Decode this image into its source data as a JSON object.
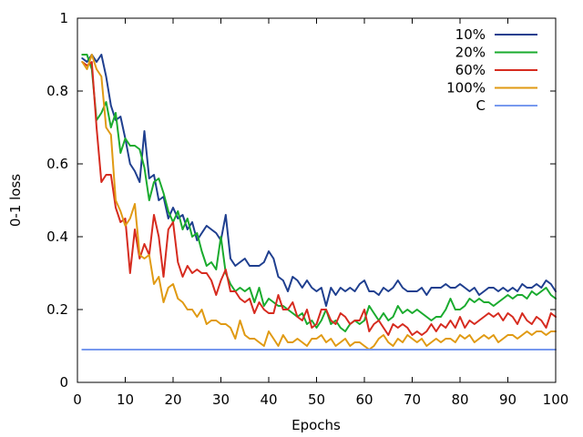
{
  "chart_data": {
    "type": "line",
    "title": "",
    "xlabel": "Epochs",
    "ylabel": "0-1 loss",
    "xlim": [
      0,
      100
    ],
    "ylim": [
      0,
      1
    ],
    "xticks": [
      0,
      10,
      20,
      30,
      40,
      50,
      60,
      70,
      80,
      90,
      100
    ],
    "yticks": [
      0,
      0.2,
      0.4,
      0.6,
      0.8,
      1
    ],
    "ytick_labels": [
      "0",
      "0.2",
      "0.4",
      "0.6",
      "0.8",
      "1"
    ],
    "grid": false,
    "legend_position": "top-right",
    "series": [
      {
        "name": "10%",
        "color": "#1f3f8f",
        "x": [
          1,
          2,
          3,
          4,
          5,
          6,
          7,
          8,
          9,
          10,
          11,
          12,
          13,
          14,
          15,
          16,
          17,
          18,
          19,
          20,
          21,
          22,
          23,
          24,
          25,
          26,
          27,
          28,
          29,
          30,
          31,
          32,
          33,
          34,
          35,
          36,
          37,
          38,
          39,
          40,
          41,
          42,
          43,
          44,
          45,
          46,
          47,
          48,
          49,
          50,
          51,
          52,
          53,
          54,
          55,
          56,
          57,
          58,
          59,
          60,
          61,
          62,
          63,
          64,
          65,
          66,
          67,
          68,
          69,
          70,
          71,
          72,
          73,
          74,
          75,
          76,
          77,
          78,
          79,
          80,
          81,
          82,
          83,
          84,
          85,
          86,
          87,
          88,
          89,
          90,
          91,
          92,
          93,
          94,
          95,
          96,
          97,
          98,
          99,
          100
        ],
        "y": [
          0.89,
          0.88,
          0.9,
          0.88,
          0.9,
          0.84,
          0.76,
          0.72,
          0.73,
          0.67,
          0.6,
          0.58,
          0.55,
          0.69,
          0.56,
          0.57,
          0.5,
          0.51,
          0.45,
          0.48,
          0.45,
          0.46,
          0.42,
          0.44,
          0.39,
          0.41,
          0.43,
          0.42,
          0.41,
          0.39,
          0.46,
          0.34,
          0.32,
          0.33,
          0.34,
          0.32,
          0.32,
          0.32,
          0.33,
          0.36,
          0.34,
          0.29,
          0.28,
          0.25,
          0.29,
          0.28,
          0.26,
          0.28,
          0.26,
          0.25,
          0.26,
          0.21,
          0.26,
          0.24,
          0.26,
          0.25,
          0.26,
          0.25,
          0.27,
          0.28,
          0.25,
          0.25,
          0.24,
          0.26,
          0.25,
          0.26,
          0.28,
          0.26,
          0.25,
          0.25,
          0.25,
          0.26,
          0.24,
          0.26,
          0.26,
          0.26,
          0.27,
          0.26,
          0.26,
          0.27,
          0.26,
          0.25,
          0.26,
          0.24,
          0.25,
          0.26,
          0.26,
          0.25,
          0.26,
          0.25,
          0.26,
          0.25,
          0.27,
          0.26,
          0.26,
          0.27,
          0.26,
          0.28,
          0.27,
          0.25
        ]
      },
      {
        "name": "20%",
        "color": "#1aab2e",
        "x": [
          1,
          2,
          3,
          4,
          5,
          6,
          7,
          8,
          9,
          10,
          11,
          12,
          13,
          14,
          15,
          16,
          17,
          18,
          19,
          20,
          21,
          22,
          23,
          24,
          25,
          26,
          27,
          28,
          29,
          30,
          31,
          32,
          33,
          34,
          35,
          36,
          37,
          38,
          39,
          40,
          41,
          42,
          43,
          44,
          45,
          46,
          47,
          48,
          49,
          50,
          51,
          52,
          53,
          54,
          55,
          56,
          57,
          58,
          59,
          60,
          61,
          62,
          63,
          64,
          65,
          66,
          67,
          68,
          69,
          70,
          71,
          72,
          73,
          74,
          75,
          76,
          77,
          78,
          79,
          80,
          81,
          82,
          83,
          84,
          85,
          86,
          87,
          88,
          89,
          90,
          91,
          92,
          93,
          94,
          95,
          96,
          97,
          98,
          99,
          100
        ],
        "y": [
          0.9,
          0.9,
          0.86,
          0.72,
          0.74,
          0.77,
          0.7,
          0.74,
          0.63,
          0.67,
          0.65,
          0.65,
          0.64,
          0.59,
          0.5,
          0.55,
          0.56,
          0.52,
          0.47,
          0.44,
          0.47,
          0.42,
          0.45,
          0.4,
          0.41,
          0.36,
          0.32,
          0.33,
          0.31,
          0.4,
          0.3,
          0.27,
          0.25,
          0.26,
          0.25,
          0.26,
          0.22,
          0.26,
          0.21,
          0.23,
          0.22,
          0.21,
          0.21,
          0.2,
          0.19,
          0.18,
          0.19,
          0.16,
          0.17,
          0.15,
          0.17,
          0.2,
          0.16,
          0.17,
          0.15,
          0.14,
          0.16,
          0.17,
          0.16,
          0.17,
          0.21,
          0.19,
          0.17,
          0.19,
          0.17,
          0.18,
          0.21,
          0.19,
          0.2,
          0.19,
          0.2,
          0.19,
          0.18,
          0.17,
          0.18,
          0.18,
          0.2,
          0.23,
          0.2,
          0.2,
          0.21,
          0.23,
          0.22,
          0.23,
          0.22,
          0.22,
          0.21,
          0.22,
          0.23,
          0.24,
          0.23,
          0.24,
          0.24,
          0.23,
          0.25,
          0.24,
          0.25,
          0.26,
          0.24,
          0.23
        ]
      },
      {
        "name": "60%",
        "color": "#d62b1f",
        "x": [
          1,
          2,
          3,
          4,
          5,
          6,
          7,
          8,
          9,
          10,
          11,
          12,
          13,
          14,
          15,
          16,
          17,
          18,
          19,
          20,
          21,
          22,
          23,
          24,
          25,
          26,
          27,
          28,
          29,
          30,
          31,
          32,
          33,
          34,
          35,
          36,
          37,
          38,
          39,
          40,
          41,
          42,
          43,
          44,
          45,
          46,
          47,
          48,
          49,
          50,
          51,
          52,
          53,
          54,
          55,
          56,
          57,
          58,
          59,
          60,
          61,
          62,
          63,
          64,
          65,
          66,
          67,
          68,
          69,
          70,
          71,
          72,
          73,
          74,
          75,
          76,
          77,
          78,
          79,
          80,
          81,
          82,
          83,
          84,
          85,
          86,
          87,
          88,
          89,
          90,
          91,
          92,
          93,
          94,
          95,
          96,
          97,
          98,
          99,
          100
        ],
        "y": [
          0.88,
          0.87,
          0.88,
          0.7,
          0.55,
          0.57,
          0.57,
          0.48,
          0.44,
          0.45,
          0.3,
          0.42,
          0.34,
          0.38,
          0.35,
          0.46,
          0.4,
          0.29,
          0.42,
          0.44,
          0.33,
          0.29,
          0.32,
          0.3,
          0.31,
          0.3,
          0.3,
          0.28,
          0.24,
          0.28,
          0.31,
          0.25,
          0.25,
          0.23,
          0.22,
          0.23,
          0.19,
          0.22,
          0.2,
          0.19,
          0.19,
          0.24,
          0.2,
          0.2,
          0.22,
          0.18,
          0.17,
          0.2,
          0.15,
          0.16,
          0.2,
          0.2,
          0.17,
          0.16,
          0.19,
          0.18,
          0.16,
          0.17,
          0.17,
          0.2,
          0.14,
          0.16,
          0.17,
          0.15,
          0.13,
          0.16,
          0.15,
          0.16,
          0.15,
          0.13,
          0.14,
          0.13,
          0.14,
          0.16,
          0.14,
          0.16,
          0.15,
          0.17,
          0.15,
          0.18,
          0.15,
          0.17,
          0.16,
          0.17,
          0.18,
          0.19,
          0.18,
          0.19,
          0.17,
          0.19,
          0.18,
          0.16,
          0.19,
          0.17,
          0.16,
          0.18,
          0.17,
          0.15,
          0.19,
          0.18
        ]
      },
      {
        "name": "100%",
        "color": "#e09a13",
        "x": [
          1,
          2,
          3,
          4,
          5,
          6,
          7,
          8,
          9,
          10,
          11,
          12,
          13,
          14,
          15,
          16,
          17,
          18,
          19,
          20,
          21,
          22,
          23,
          24,
          25,
          26,
          27,
          28,
          29,
          30,
          31,
          32,
          33,
          34,
          35,
          36,
          37,
          38,
          39,
          40,
          41,
          42,
          43,
          44,
          45,
          46,
          47,
          48,
          49,
          50,
          51,
          52,
          53,
          54,
          55,
          56,
          57,
          58,
          59,
          60,
          61,
          62,
          63,
          64,
          65,
          66,
          67,
          68,
          69,
          70,
          71,
          72,
          73,
          74,
          75,
          76,
          77,
          78,
          79,
          80,
          81,
          82,
          83,
          84,
          85,
          86,
          87,
          88,
          89,
          90,
          91,
          92,
          93,
          94,
          95,
          96,
          97,
          98,
          99,
          100
        ],
        "y": [
          0.88,
          0.86,
          0.9,
          0.86,
          0.84,
          0.7,
          0.68,
          0.5,
          0.47,
          0.43,
          0.45,
          0.49,
          0.35,
          0.34,
          0.35,
          0.27,
          0.29,
          0.22,
          0.26,
          0.27,
          0.23,
          0.22,
          0.2,
          0.2,
          0.18,
          0.2,
          0.16,
          0.17,
          0.17,
          0.16,
          0.16,
          0.15,
          0.12,
          0.17,
          0.13,
          0.12,
          0.12,
          0.11,
          0.1,
          0.14,
          0.12,
          0.1,
          0.13,
          0.11,
          0.11,
          0.12,
          0.11,
          0.1,
          0.12,
          0.12,
          0.13,
          0.11,
          0.12,
          0.1,
          0.11,
          0.12,
          0.1,
          0.11,
          0.11,
          0.1,
          0.09,
          0.1,
          0.12,
          0.13,
          0.11,
          0.1,
          0.12,
          0.11,
          0.13,
          0.12,
          0.11,
          0.12,
          0.1,
          0.11,
          0.12,
          0.11,
          0.12,
          0.12,
          0.11,
          0.13,
          0.12,
          0.13,
          0.11,
          0.12,
          0.13,
          0.12,
          0.13,
          0.11,
          0.12,
          0.13,
          0.13,
          0.12,
          0.13,
          0.14,
          0.13,
          0.14,
          0.14,
          0.13,
          0.14,
          0.14
        ]
      },
      {
        "name": "C",
        "color": "#7799ee",
        "x": [
          1,
          100
        ],
        "y": [
          0.09,
          0.09
        ]
      }
    ]
  }
}
